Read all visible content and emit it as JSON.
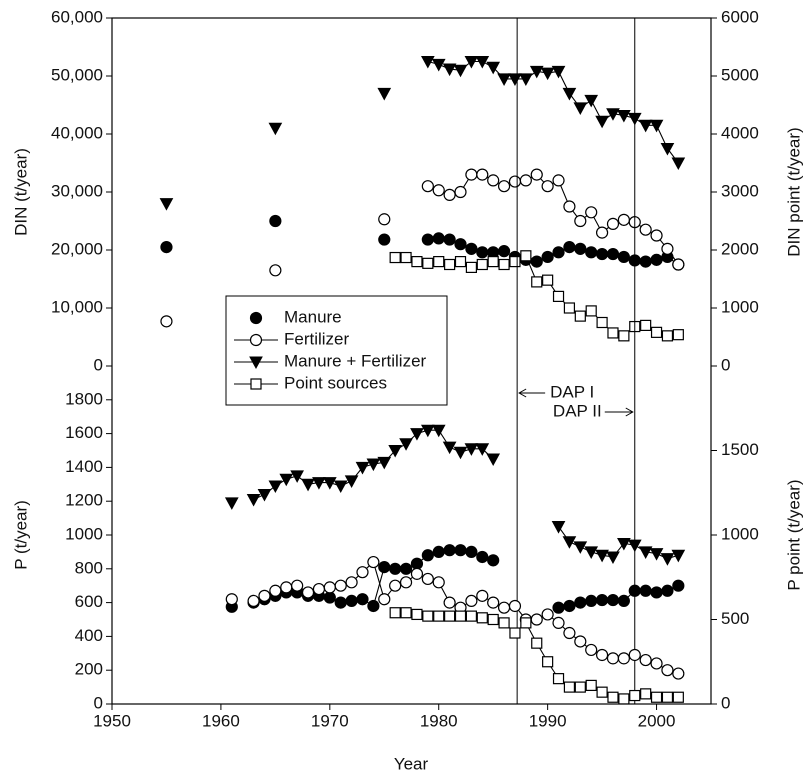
{
  "chart_data": [
    {
      "type": "line",
      "ylabel": "DIN (t/year)",
      "y2label": "DIN point (t/year)",
      "xlim": [
        1950,
        2005
      ],
      "ylim": [
        0,
        60000
      ],
      "y2lim": [
        0,
        6000
      ],
      "yticks": [
        0,
        {
          "value": 10000,
          "label": "10,000"
        },
        {
          "value": 20000,
          "label": "20,000"
        },
        {
          "value": 30000,
          "label": "30,000"
        },
        {
          "value": 40000,
          "label": "40,000"
        },
        {
          "value": 50000,
          "label": "50,000"
        },
        {
          "value": 60000,
          "label": "60,000"
        }
      ],
      "y2ticks": [
        0,
        1000,
        2000,
        3000,
        4000,
        5000,
        6000
      ],
      "legend": "lower left",
      "series": [
        {
          "name": "Manure",
          "color": "#000000",
          "marker": "circle",
          "fill": "#000000",
          "x": [
            1955,
            1965,
            1975,
            1979,
            1980,
            1981,
            1982,
            1983,
            1984,
            1985,
            1986,
            1987,
            1988,
            1989,
            1990,
            1991,
            1992,
            1993,
            1994,
            1995,
            1996,
            1997,
            1998,
            1999,
            2000,
            2001,
            2002
          ],
          "values": [
            20500,
            25000,
            21800,
            21800,
            22000,
            21800,
            21000,
            20200,
            19600,
            19600,
            19800,
            18800,
            18300,
            18000,
            18800,
            19600,
            20500,
            20200,
            19600,
            19300,
            19300,
            18800,
            18200,
            18000,
            18300,
            18800,
            17500
          ]
        },
        {
          "name": "Fertilizer",
          "color": "#000000",
          "marker": "circle",
          "fill": "#ffffff",
          "x": [
            1955,
            1965,
            1975,
            1979,
            1980,
            1981,
            1982,
            1983,
            1984,
            1985,
            1986,
            1987,
            1988,
            1989,
            1990,
            1991,
            1992,
            1993,
            1994,
            1995,
            1996,
            1997,
            1998,
            1999,
            2000,
            2001,
            2002
          ],
          "values": [
            7700,
            16500,
            25300,
            31000,
            30300,
            29500,
            30000,
            33000,
            33000,
            32000,
            31000,
            31800,
            32000,
            33000,
            31000,
            32000,
            27500,
            25000,
            26500,
            23000,
            24500,
            25200,
            24800,
            23500,
            22500,
            20200,
            17500
          ]
        },
        {
          "name": "Manure + Fertilizer",
          "color": "#000000",
          "marker": "triangle",
          "fill": "#000000",
          "x": [
            1955,
            1965,
            1975,
            1979,
            1980,
            1981,
            1982,
            1983,
            1984,
            1985,
            1986,
            1987,
            1988,
            1989,
            1990,
            1991,
            1992,
            1993,
            1994,
            1995,
            1996,
            1997,
            1998,
            1999,
            2000,
            2001,
            2002
          ],
          "values": [
            28000,
            41000,
            47000,
            52500,
            52000,
            51200,
            51000,
            52500,
            52500,
            51500,
            49500,
            49500,
            49500,
            50800,
            50500,
            50800,
            47000,
            44500,
            45800,
            42200,
            43500,
            43200,
            42700,
            41500,
            41500,
            37500,
            35000
          ]
        },
        {
          "name": "Point sources",
          "color": "#000000",
          "marker": "square",
          "fill": "#ffffff",
          "axis": "y2",
          "x": [
            1976,
            1977,
            1978,
            1979,
            1980,
            1981,
            1982,
            1983,
            1984,
            1985,
            1986,
            1987,
            1988,
            1989,
            1990,
            1991,
            1992,
            1993,
            1994,
            1995,
            1996,
            1997,
            1998,
            1999,
            2000,
            2001,
            2002
          ],
          "values": [
            1870,
            1870,
            1800,
            1770,
            1800,
            1750,
            1800,
            1700,
            1750,
            1800,
            1750,
            1800,
            1900,
            1450,
            1480,
            1200,
            1000,
            860,
            950,
            750,
            570,
            520,
            680,
            700,
            580,
            520,
            540
          ]
        }
      ]
    },
    {
      "type": "line",
      "ylabel": "P (t/year)",
      "y2label": "P point (t/year)",
      "xlabel": "Year",
      "xlim": [
        1950,
        2005
      ],
      "ylim": [
        0,
        2000
      ],
      "y2lim": [
        0,
        2000
      ],
      "xticks": [
        1950,
        1960,
        1970,
        1980,
        1990,
        2000
      ],
      "yticks": [
        0,
        200,
        400,
        600,
        800,
        1000,
        1200,
        1400,
        1600,
        1800
      ],
      "y2ticks": [
        0,
        500,
        1000,
        1500
      ],
      "annotations": [
        {
          "text": "DAP I",
          "x": 1987.2
        },
        {
          "text": "DAP II",
          "x": 1998
        }
      ],
      "series": [
        {
          "color": "#000000",
          "marker": "circle",
          "fill": "#000000",
          "x": [
            1961,
            1963,
            1964,
            1965,
            1966,
            1967,
            1968,
            1969,
            1970,
            1971,
            1972,
            1973,
            1974,
            1975,
            1976,
            1977,
            1978,
            1979,
            1980,
            1981,
            1982,
            1983,
            1984,
            1985,
            1991,
            1992,
            1993,
            1994,
            1995,
            1996,
            1997,
            1998,
            1999,
            2000,
            2001,
            2002
          ],
          "values": [
            575,
            600,
            620,
            640,
            660,
            660,
            640,
            640,
            630,
            600,
            610,
            620,
            580,
            810,
            800,
            800,
            830,
            880,
            900,
            910,
            910,
            900,
            870,
            850,
            570,
            580,
            600,
            610,
            615,
            615,
            610,
            670,
            670,
            660,
            670,
            700
          ]
        },
        {
          "color": "#000000",
          "marker": "circle",
          "fill": "#ffffff",
          "x": [
            1961,
            1963,
            1964,
            1965,
            1966,
            1967,
            1968,
            1969,
            1970,
            1971,
            1972,
            1973,
            1974,
            1975,
            1976,
            1977,
            1978,
            1979,
            1980,
            1981,
            1982,
            1983,
            1984,
            1985,
            1986,
            1987,
            1988,
            1989,
            1990,
            1991,
            1992,
            1993,
            1994,
            1995,
            1996,
            1997,
            1998,
            1999,
            2000,
            2001,
            2002
          ],
          "values": [
            620,
            610,
            640,
            670,
            690,
            700,
            660,
            680,
            690,
            700,
            720,
            780,
            840,
            620,
            700,
            720,
            770,
            740,
            720,
            600,
            570,
            610,
            640,
            600,
            570,
            580,
            500,
            500,
            530,
            480,
            420,
            370,
            320,
            290,
            270,
            270,
            290,
            260,
            240,
            200,
            180
          ]
        },
        {
          "color": "#000000",
          "marker": "triangle",
          "fill": "#000000",
          "x": [
            1961,
            1963,
            1964,
            1965,
            1966,
            1967,
            1968,
            1969,
            1970,
            1971,
            1972,
            1973,
            1974,
            1975,
            1976,
            1977,
            1978,
            1979,
            1980,
            1981,
            1982,
            1983,
            1984,
            1985,
            1991,
            1992,
            1993,
            1994,
            1995,
            1996,
            1997,
            1998,
            1999,
            2000,
            2001,
            2002
          ],
          "values": [
            1190,
            1210,
            1240,
            1290,
            1330,
            1350,
            1300,
            1310,
            1310,
            1290,
            1320,
            1400,
            1420,
            1430,
            1500,
            1540,
            1600,
            1620,
            1620,
            1520,
            1490,
            1510,
            1510,
            1450,
            1050,
            960,
            930,
            900,
            880,
            870,
            950,
            940,
            900,
            890,
            860,
            880
          ]
        },
        {
          "color": "#000000",
          "marker": "square",
          "fill": "#ffffff",
          "axis": "y2",
          "x": [
            1976,
            1977,
            1978,
            1979,
            1980,
            1981,
            1982,
            1983,
            1984,
            1985,
            1986,
            1987,
            1988,
            1989,
            1990,
            1991,
            1992,
            1993,
            1994,
            1995,
            1996,
            1997,
            1998,
            1999,
            2000,
            2001,
            2002
          ],
          "values": [
            540,
            540,
            530,
            520,
            520,
            520,
            520,
            520,
            510,
            500,
            480,
            420,
            480,
            360,
            250,
            150,
            100,
            100,
            110,
            70,
            40,
            30,
            50,
            60,
            40,
            40,
            40
          ]
        }
      ]
    }
  ]
}
